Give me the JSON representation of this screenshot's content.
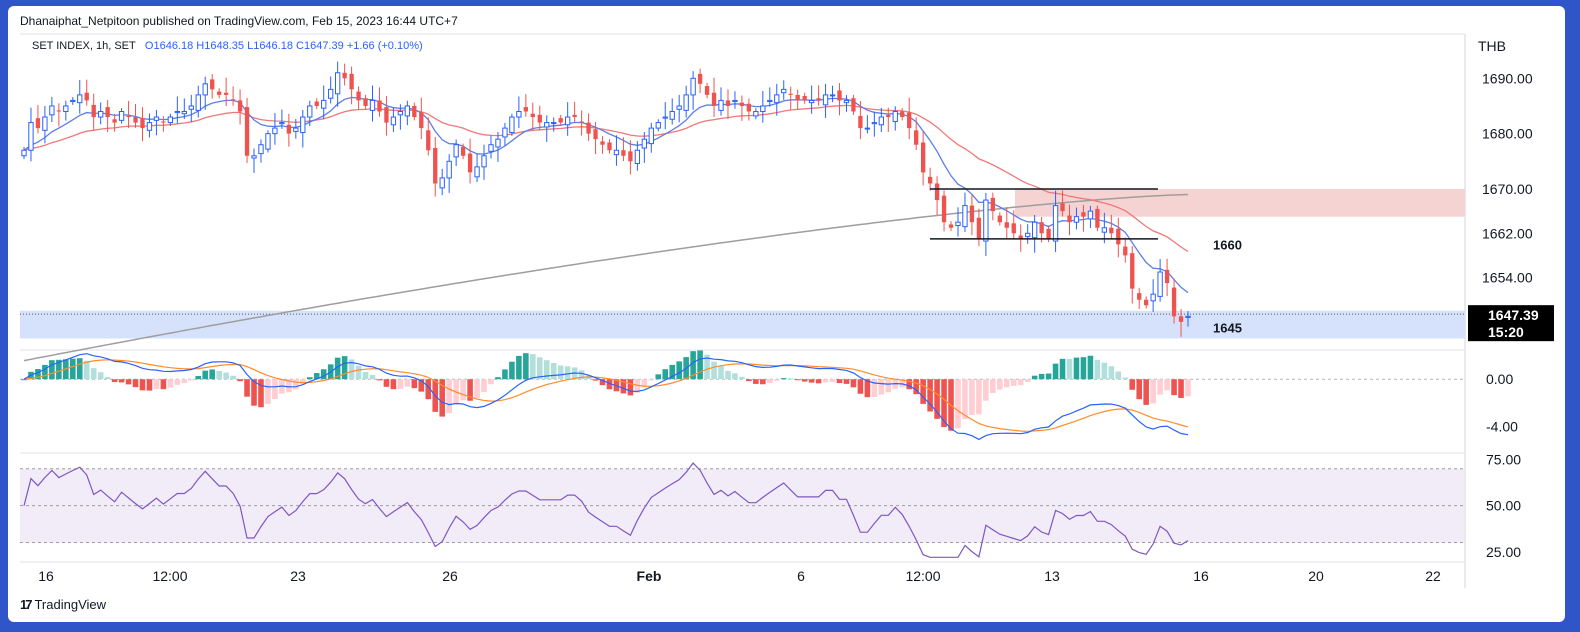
{
  "header": {
    "publisher_line": "Dhanaiphat_Netpitoon published on TradingView.com, Feb 15, 2023 16:44 UTC+7",
    "symbol": "SET INDEX, 1h, SET",
    "open": "O1646.18",
    "high": "H1648.35",
    "low": "L1646.18",
    "close": "C1647.39",
    "change": "+1.66 (+0.10%)",
    "currency": "THB"
  },
  "footer": {
    "brand": "TradingView"
  },
  "colors": {
    "up": "#2962ff",
    "down": "#ef5350",
    "ema_fast": "#5b7fe8",
    "ema_mid": "#f07878",
    "ema_slow": "#9e9e9e",
    "macd": "#2962ff",
    "signal": "#ff8c2a",
    "rsi": "#7e57c2",
    "support_zone": "#d6e2fb",
    "resistance_zone": "#f6d3d3",
    "price_tag_bg": "#000000"
  },
  "chart_data": [
    {
      "type": "candlestick",
      "name": "price",
      "x_ticks": [
        "16",
        "12:00",
        "23",
        "26",
        "Feb",
        "6",
        "12:00",
        "13",
        "16",
        "20",
        "22"
      ],
      "y_ticks": [
        "1690.00",
        "1680.00",
        "1670.00",
        "1662.00",
        "1654.00"
      ],
      "ylim": [
        1642,
        1698
      ],
      "last_price": "1647.39",
      "countdown": "15:20",
      "annotations": [
        {
          "label": "1660",
          "value": 1660
        },
        {
          "label": "1645",
          "value": 1645
        }
      ],
      "support_zone": [
        1643,
        1648
      ],
      "resistance_zone": [
        1665,
        1670
      ],
      "range_box": [
        1661,
        1670
      ],
      "closes": [
        1677,
        1682,
        1681,
        1683,
        1685,
        1684,
        1685,
        1686,
        1687,
        1686,
        1683,
        1684,
        1683,
        1682,
        1684,
        1683,
        1682,
        1681,
        1682,
        1683,
        1682,
        1683,
        1684,
        1684,
        1685,
        1687,
        1689,
        1688,
        1687,
        1687,
        1686,
        1684,
        1676,
        1676,
        1678,
        1680,
        1681,
        1682,
        1680,
        1681,
        1683,
        1685,
        1685,
        1686,
        1688,
        1691,
        1690,
        1688,
        1686,
        1685,
        1686,
        1684,
        1682,
        1683,
        1684,
        1685,
        1683,
        1681,
        1677,
        1671,
        1672,
        1675,
        1678,
        1676,
        1673,
        1674,
        1676,
        1678,
        1679,
        1681,
        1683,
        1684,
        1684,
        1683,
        1682,
        1682,
        1682,
        1682,
        1683,
        1683,
        1682,
        1680,
        1679,
        1678,
        1677,
        1677,
        1676,
        1675,
        1677,
        1679,
        1681,
        1682,
        1683,
        1684,
        1685,
        1687,
        1690,
        1689,
        1687,
        1685,
        1686,
        1685,
        1686,
        1685,
        1684,
        1684,
        1685,
        1686,
        1687,
        1688,
        1687,
        1686,
        1686,
        1686,
        1686,
        1687,
        1687,
        1686,
        1686,
        1684,
        1681,
        1681,
        1682,
        1683,
        1683,
        1684,
        1683,
        1681,
        1678,
        1673,
        1671,
        1668,
        1664,
        1663,
        1664,
        1667,
        1664,
        1661,
        1668,
        1666,
        1664,
        1663,
        1662,
        1661,
        1662,
        1664,
        1662,
        1661,
        1667,
        1666,
        1664,
        1665,
        1665,
        1666,
        1663,
        1663,
        1662,
        1660,
        1658,
        1652,
        1650,
        1649,
        1651,
        1655,
        1653,
        1647,
        1646,
        1647
      ]
    },
    {
      "type": "macd",
      "y_ticks": [
        "0.00",
        "-4.00"
      ],
      "ylim": [
        -6.1,
        2.4
      ]
    },
    {
      "type": "rsi",
      "y_ticks": [
        "75.00",
        "50.00",
        "25.00"
      ],
      "ylim": [
        20,
        78
      ],
      "band": [
        30,
        70
      ]
    }
  ]
}
